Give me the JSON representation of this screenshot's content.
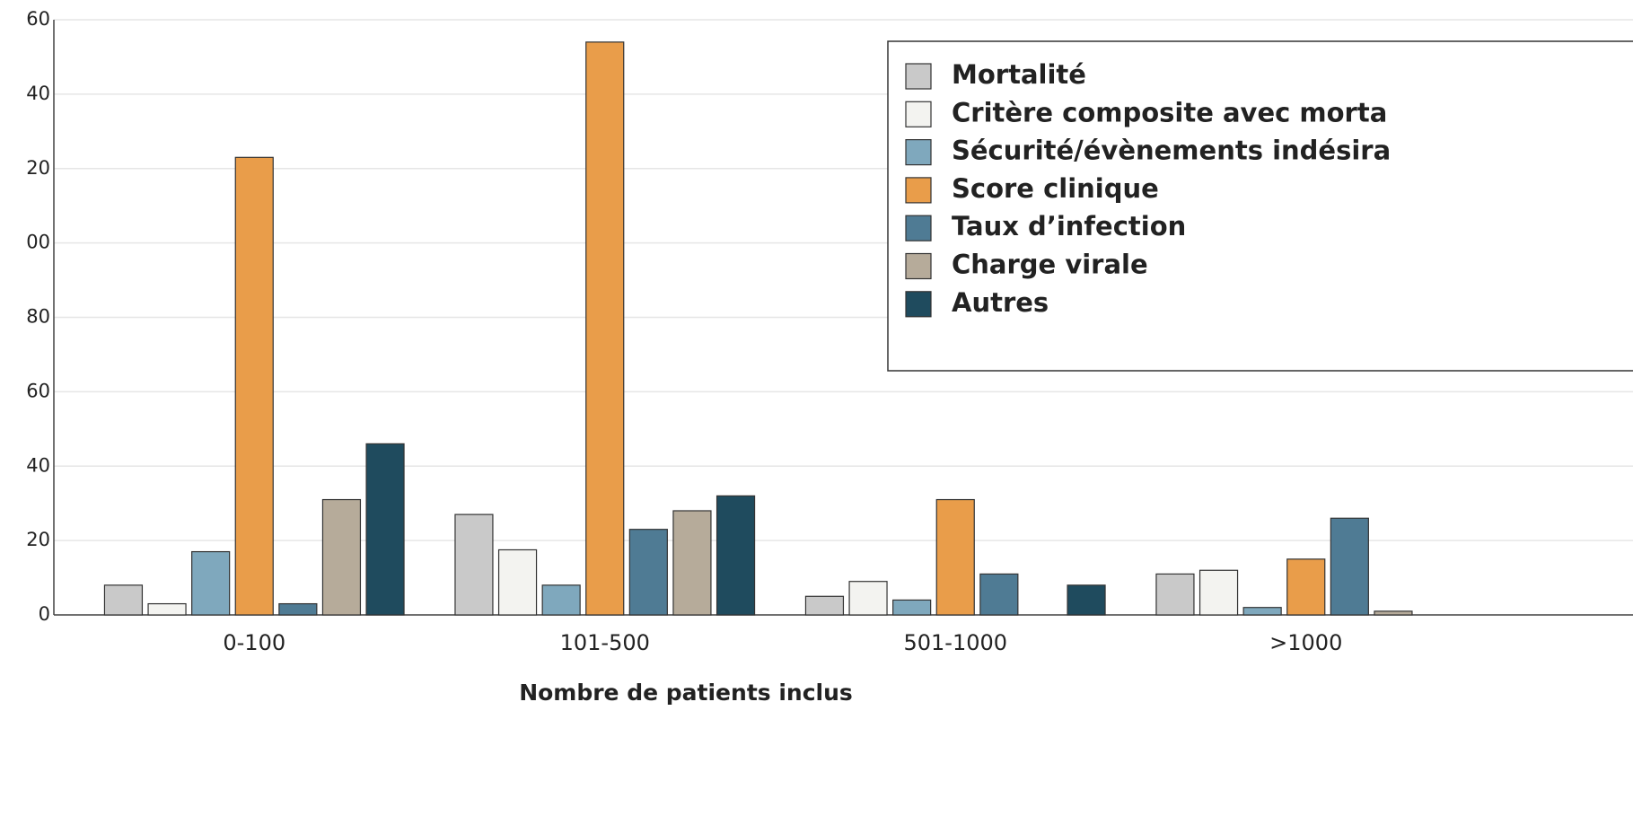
{
  "chart_data": {
    "type": "bar",
    "x_label": "Nombre de patients inclus",
    "categories": [
      "0-100",
      "101-500",
      "501-1000",
      ">1000"
    ],
    "series": [
      {
        "name": "Mortalité",
        "color": "#c9c9c9",
        "values": [
          8,
          27,
          5,
          11
        ]
      },
      {
        "name": "Critère composite avec morta",
        "color": "#f3f3f0",
        "values": [
          3,
          17.5,
          9,
          12
        ]
      },
      {
        "name": "Sécurité/évènements indésira",
        "color": "#7fa8bd",
        "values": [
          17,
          8,
          4,
          2
        ]
      },
      {
        "name": "Score clinique",
        "color": "#e99d4a",
        "values": [
          123,
          154,
          31,
          15
        ]
      },
      {
        "name": "Taux d’infection",
        "color": "#4f7b94",
        "values": [
          3,
          23,
          11,
          26
        ]
      },
      {
        "name": "Charge virale",
        "color": "#b6ab9a",
        "values": [
          31,
          28,
          0,
          1
        ]
      },
      {
        "name": "Autres",
        "color": "#1f4b5e",
        "values": [
          46,
          32,
          8,
          null
        ]
      }
    ],
    "ylim": [
      0,
      160
    ],
    "yticks": [
      0,
      20,
      40,
      60,
      80,
      {
        "value": 100,
        "label": "00"
      },
      {
        "value": 120,
        "label": "20"
      },
      {
        "value": 140,
        "label": "40"
      },
      {
        "value": 160,
        "label": "60"
      }
    ],
    "grid": true,
    "legend": "upper right"
  }
}
